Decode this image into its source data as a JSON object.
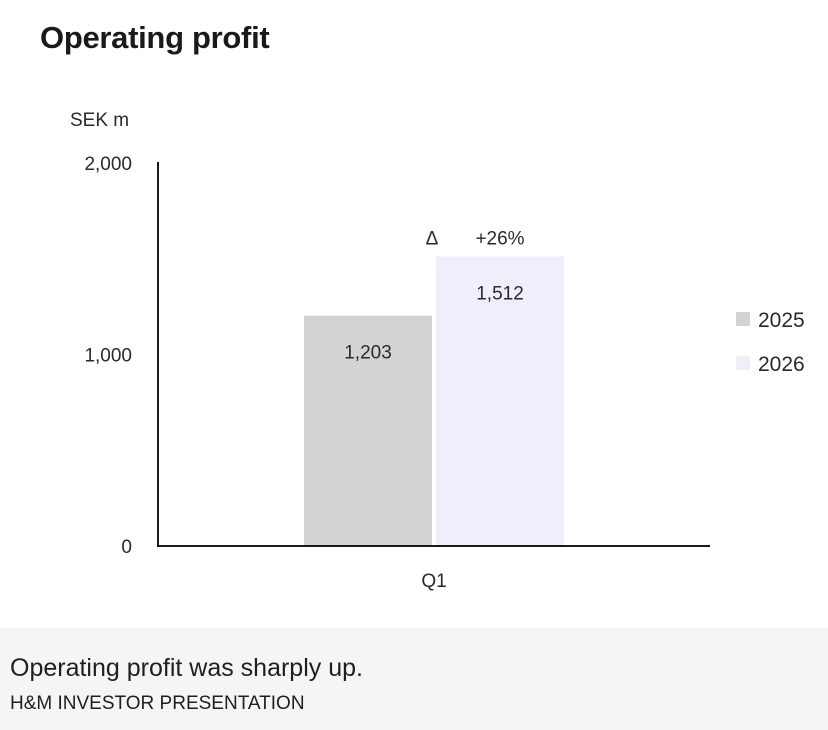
{
  "chart_data": {
    "type": "bar",
    "title": "Operating profit",
    "unit_label": "SEK m",
    "categories": [
      "Q1"
    ],
    "series": [
      {
        "name": "2025",
        "values": [
          1203
        ],
        "labels": [
          "1,203"
        ],
        "color": "#d3d3d1"
      },
      {
        "name": "2026",
        "values": [
          1512
        ],
        "labels": [
          "1,512"
        ],
        "color": "#efeefa"
      }
    ],
    "ylim": [
      0,
      2000
    ],
    "y_ticks": [
      {
        "value": 0,
        "label": "0"
      },
      {
        "value": 1000,
        "label": "1,000"
      },
      {
        "value": 2000,
        "label": "2,000"
      }
    ],
    "annotation": {
      "symbol": "Δ",
      "text": "+26%"
    },
    "legend_position": "right",
    "grid": false
  },
  "caption": "Operating profit was sharply up.",
  "credit": "H&M INVESTOR PRESENTATION"
}
